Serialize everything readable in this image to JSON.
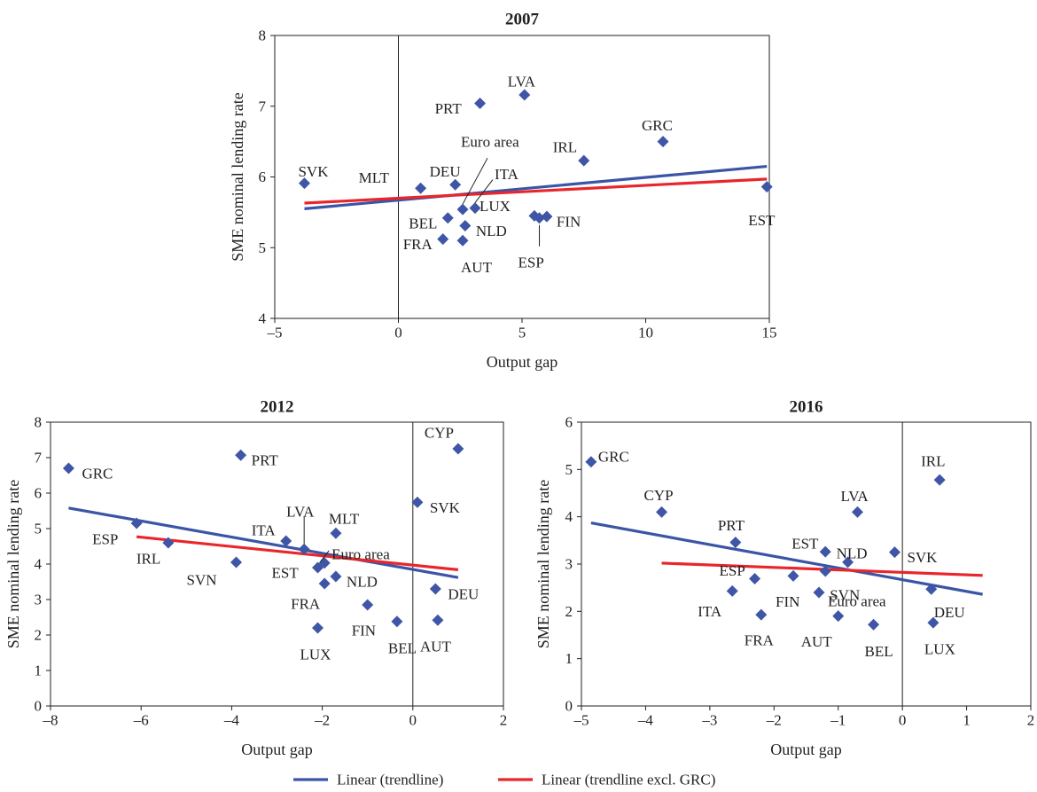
{
  "colors": {
    "marker": "#3f56a6",
    "trend_all": "#3b55a6",
    "trend_excl_grc": "#e8262b",
    "axis": "#231f20"
  },
  "legend": {
    "items": [
      {
        "label": "Linear (trendline)",
        "color": "#3b55a6"
      },
      {
        "label": "Linear (trendline excl. GRC)",
        "color": "#e8262b"
      }
    ],
    "position": "bottom-center"
  },
  "chart_data": [
    {
      "type": "scatter",
      "title": "2007",
      "xlabel": "Output gap",
      "ylabel": "SME nominal lending rate",
      "xlim": [
        -5,
        15
      ],
      "ylim": [
        4,
        8
      ],
      "xticks": [
        "–5",
        "0",
        "5",
        "10",
        "15"
      ],
      "yticks": [
        "4",
        "5",
        "6",
        "7",
        "8"
      ],
      "xtick_values": [
        -5,
        0,
        5,
        10,
        15
      ],
      "ytick_values": [
        4,
        5,
        6,
        7,
        8
      ],
      "zero_line_x": 0,
      "points": [
        {
          "label": "SVK",
          "x": -3.8,
          "y": 5.91
        },
        {
          "label": "MLT",
          "x": 0.9,
          "y": 5.84
        },
        {
          "label": "DEU",
          "x": 2.3,
          "y": 5.89
        },
        {
          "label": "Euro area",
          "x": 2.6,
          "y": 5.54
        },
        {
          "label": "ITA",
          "x": 3.1,
          "y": 5.56
        },
        {
          "label": "BEL",
          "x": 2.0,
          "y": 5.42
        },
        {
          "label": "NLD",
          "x": 2.7,
          "y": 5.31
        },
        {
          "label": "FRA",
          "x": 1.8,
          "y": 5.12
        },
        {
          "label": "AUT",
          "x": 2.6,
          "y": 5.1
        },
        {
          "label": "PRT",
          "x": 3.3,
          "y": 7.04
        },
        {
          "label": "LVA",
          "x": 5.1,
          "y": 7.16
        },
        {
          "label": "IRL",
          "x": 7.5,
          "y": 6.23
        },
        {
          "label": "GRC",
          "x": 10.7,
          "y": 6.5
        },
        {
          "label": "LUX",
          "x": 5.5,
          "y": 5.45
        },
        {
          "label": "FIN",
          "x": 6.0,
          "y": 5.44
        },
        {
          "label": "ESP",
          "x": 5.7,
          "y": 5.42
        },
        {
          "label": "EST",
          "x": 14.9,
          "y": 5.86
        }
      ],
      "trendlines": [
        {
          "name": "Linear (trendline)",
          "x": [
            -3.8,
            14.9
          ],
          "y": [
            5.55,
            6.15
          ]
        },
        {
          "name": "Linear (trendline excl. GRC)",
          "x": [
            -3.8,
            14.9
          ],
          "y": [
            5.63,
            5.97
          ]
        }
      ]
    },
    {
      "type": "scatter",
      "title": "2012",
      "xlabel": "Output gap",
      "ylabel": "SME nominal lending rate",
      "xlim": [
        -8,
        2
      ],
      "ylim": [
        0,
        8
      ],
      "xticks": [
        "–8",
        "–6",
        "–4",
        "–2",
        "0",
        "2"
      ],
      "yticks": [
        "0",
        "1",
        "2",
        "3",
        "4",
        "5",
        "6",
        "7",
        "8"
      ],
      "xtick_values": [
        -8,
        -6,
        -4,
        -2,
        0,
        2
      ],
      "ytick_values": [
        0,
        1,
        2,
        3,
        4,
        5,
        6,
        7,
        8
      ],
      "zero_line_x": 0,
      "points": [
        {
          "label": "GRC",
          "x": -7.6,
          "y": 6.7
        },
        {
          "label": "PRT",
          "x": -3.8,
          "y": 7.07
        },
        {
          "label": "CYP",
          "x": 1.0,
          "y": 7.25
        },
        {
          "label": "SVK",
          "x": 0.1,
          "y": 5.74
        },
        {
          "label": "ESP",
          "x": -6.1,
          "y": 5.15
        },
        {
          "label": "IRL",
          "x": -5.4,
          "y": 4.6
        },
        {
          "label": "ITA",
          "x": -2.8,
          "y": 4.65
        },
        {
          "label": "LVA",
          "x": -2.4,
          "y": 4.42
        },
        {
          "label": "MLT",
          "x": -1.7,
          "y": 4.87
        },
        {
          "label": "Euro area",
          "x": -1.95,
          "y": 4.03
        },
        {
          "label": "EST",
          "x": -2.1,
          "y": 3.9
        },
        {
          "label": "SVN",
          "x": -3.9,
          "y": 4.05
        },
        {
          "label": "NLD",
          "x": -1.7,
          "y": 3.65
        },
        {
          "label": "FRA",
          "x": -1.95,
          "y": 3.45
        },
        {
          "label": "DEU",
          "x": 0.5,
          "y": 3.3
        },
        {
          "label": "FIN",
          "x": -1.0,
          "y": 2.85
        },
        {
          "label": "BEL",
          "x": -0.35,
          "y": 2.38
        },
        {
          "label": "AUT",
          "x": 0.55,
          "y": 2.42
        },
        {
          "label": "LUX",
          "x": -2.1,
          "y": 2.2
        }
      ],
      "trendlines": [
        {
          "name": "Linear (trendline)",
          "x": [
            -7.6,
            1.0
          ],
          "y": [
            5.58,
            3.62
          ]
        },
        {
          "name": "Linear (trendline excl. GRC)",
          "x": [
            -6.1,
            1.0
          ],
          "y": [
            4.77,
            3.84
          ]
        }
      ]
    },
    {
      "type": "scatter",
      "title": "2016",
      "xlabel": "Output gap",
      "ylabel": "SME nominal lending rate",
      "xlim": [
        -5,
        2
      ],
      "ylim": [
        0,
        6
      ],
      "xticks": [
        "–5",
        "–4",
        "–3",
        "–2",
        "–1",
        "0",
        "1",
        "2"
      ],
      "yticks": [
        "0",
        "1",
        "2",
        "3",
        "4",
        "5",
        "6"
      ],
      "xtick_values": [
        -5,
        -4,
        -3,
        -2,
        -1,
        0,
        1,
        2
      ],
      "ytick_values": [
        0,
        1,
        2,
        3,
        4,
        5,
        6
      ],
      "zero_line_x": 0,
      "points": [
        {
          "label": "GRC",
          "x": -4.85,
          "y": 5.16
        },
        {
          "label": "CYP",
          "x": -3.75,
          "y": 4.1
        },
        {
          "label": "IRL",
          "x": 0.58,
          "y": 4.78
        },
        {
          "label": "LVA",
          "x": -0.7,
          "y": 4.1
        },
        {
          "label": "PRT",
          "x": -2.6,
          "y": 3.46
        },
        {
          "label": "EST",
          "x": -1.2,
          "y": 3.26
        },
        {
          "label": "NLD",
          "x": -0.85,
          "y": 3.04
        },
        {
          "label": "SVK",
          "x": -0.12,
          "y": 3.25
        },
        {
          "label": "ESP",
          "x": -2.3,
          "y": 2.69
        },
        {
          "label": "ITA",
          "x": -2.65,
          "y": 2.43
        },
        {
          "label": "FIN",
          "x": -1.7,
          "y": 2.75
        },
        {
          "label": "SVN",
          "x": -1.2,
          "y": 2.85
        },
        {
          "label": "Euro area",
          "x": -1.3,
          "y": 2.4
        },
        {
          "label": "FRA",
          "x": -2.2,
          "y": 1.93
        },
        {
          "label": "AUT",
          "x": -1.0,
          "y": 1.9
        },
        {
          "label": "BEL",
          "x": -0.45,
          "y": 1.72
        },
        {
          "label": "DEU",
          "x": 0.45,
          "y": 2.47
        },
        {
          "label": "LUX",
          "x": 0.48,
          "y": 1.76
        }
      ],
      "trendlines": [
        {
          "name": "Linear (trendline)",
          "x": [
            -4.85,
            1.25
          ],
          "y": [
            3.87,
            2.36
          ]
        },
        {
          "name": "Linear (trendline excl. GRC)",
          "x": [
            -3.75,
            1.25
          ],
          "y": [
            3.02,
            2.76
          ]
        }
      ]
    }
  ]
}
